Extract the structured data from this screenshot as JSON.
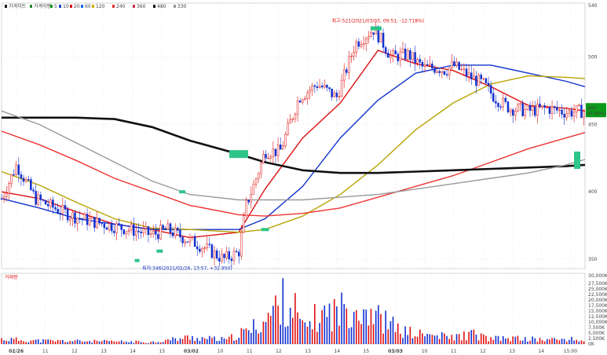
{
  "chart_data": {
    "type": "candlestick",
    "panels": [
      {
        "name": "price",
        "legend": [
          {
            "label": "가격차트",
            "color": "#1a1a1a"
          },
          {
            "label": "가격이평",
            "color": "#2a8a2a"
          },
          {
            "label": "5",
            "color": "#1a9a1a"
          },
          {
            "label": "10",
            "color": "#2244cc"
          },
          {
            "label": "20",
            "color": "#dd1111"
          },
          {
            "label": "60",
            "color": "#1166ee"
          },
          {
            "label": "120",
            "color": "#c8b400"
          },
          {
            "label": "240",
            "color": "#ee3333"
          },
          {
            "label": "360",
            "color": "#cc3355"
          },
          {
            "label": "480",
            "color": "#111111"
          },
          {
            "label": "330",
            "color": "#999999"
          }
        ],
        "y_ticks": [
          350,
          400,
          450,
          500
        ],
        "ylim": [
          343,
          540
        ],
        "top_label": "540",
        "current_price": "460",
        "current_change": "(0.00%)",
        "annotation_high": "최고:521(2021/03/03, 09:51, -12.718%)",
        "annotation_low": "최저:346(2021/02/26, 13:57, +32.950)"
      },
      {
        "name": "volume",
        "title": "거래량",
        "y_ticks": [
          "27,500K",
          "25,000K",
          "22,500K",
          "20,000K",
          "17,500K",
          "15,000K",
          "12,500K",
          "10,000K",
          "7,500K",
          "5,000K",
          "2,500K",
          "0K"
        ],
        "top_label": "30,000K"
      }
    ],
    "x_ticks": [
      "02/26",
      "11",
      "12",
      "13",
      "14",
      "15",
      "03/02",
      "10",
      "11",
      "12",
      "13",
      "14",
      "15",
      "03/03",
      "10",
      "11",
      "12",
      "13",
      "14",
      "15:00"
    ],
    "x_ticks_bold": [
      "02/26",
      "03/02",
      "03/03"
    ],
    "price_series_anchors": {
      "x": [
        0,
        8,
        18,
        28,
        38,
        48,
        58,
        68,
        75,
        80,
        88,
        98,
        106,
        118,
        126,
        130,
        134,
        140,
        148,
        158,
        168,
        178,
        188,
        198,
        207,
        216,
        224,
        232,
        236,
        240,
        244,
        248,
        256,
        262,
        270,
        280,
        290,
        300,
        310
      ],
      "y": [
        395,
        420,
        395,
        388,
        382,
        378,
        375,
        372,
        370,
        368,
        372,
        365,
        360,
        350,
        355,
        390,
        405,
        430,
        430,
        470,
        480,
        470,
        510,
        521,
        500,
        502,
        492,
        492,
        490,
        494,
        490,
        486,
        480,
        470,
        462,
        460,
        462,
        459,
        460
      ]
    },
    "ma_series": [
      {
        "name": "20",
        "color": "#dd1111",
        "x": [
          0,
          20,
          40,
          60,
          80,
          100,
          126,
          140,
          160,
          180,
          200,
          220,
          240,
          260,
          280,
          300,
          310
        ],
        "y": [
          400,
          395,
          385,
          376,
          372,
          366,
          370,
          402,
          440,
          466,
          505,
          495,
          490,
          478,
          464,
          462,
          460
        ]
      },
      {
        "name": "60",
        "color": "#1133cc",
        "x": [
          0,
          20,
          40,
          60,
          80,
          100,
          126,
          140,
          160,
          180,
          200,
          220,
          240,
          260,
          280,
          300,
          310
        ],
        "y": [
          395,
          388,
          380,
          376,
          372,
          372,
          372,
          380,
          404,
          440,
          468,
          488,
          494,
          494,
          488,
          482,
          478
        ]
      },
      {
        "name": "120",
        "color": "#b8a300",
        "x": [
          0,
          20,
          40,
          60,
          80,
          100,
          126,
          140,
          160,
          180,
          200,
          220,
          240,
          260,
          280,
          300,
          310
        ],
        "y": [
          415,
          405,
          392,
          380,
          373,
          372,
          370,
          372,
          382,
          398,
          420,
          446,
          466,
          480,
          486,
          485,
          484
        ]
      },
      {
        "name": "240",
        "color": "#ee3333",
        "x": [
          0,
          20,
          40,
          60,
          80,
          100,
          126,
          140,
          160,
          180,
          200,
          220,
          240,
          260,
          280,
          300,
          310
        ],
        "y": [
          445,
          435,
          423,
          410,
          400,
          390,
          383,
          382,
          384,
          388,
          396,
          404,
          412,
          422,
          432,
          440,
          444
        ]
      },
      {
        "name": "480",
        "color": "#111111",
        "x": [
          0,
          40,
          60,
          80,
          100,
          126,
          140,
          160,
          180,
          200,
          220,
          240,
          260,
          280,
          300,
          310
        ],
        "y": [
          455,
          455,
          454,
          448,
          438,
          428,
          422,
          416,
          414,
          414,
          415,
          416,
          417,
          418,
          419,
          420
        ]
      },
      {
        "name": "330",
        "color": "#999999",
        "x": [
          0,
          20,
          40,
          60,
          80,
          100,
          126,
          140,
          160,
          180,
          200,
          220,
          240,
          260,
          280,
          300,
          310
        ],
        "y": [
          460,
          450,
          436,
          422,
          408,
          398,
          394,
          394,
          394,
          396,
          398,
          402,
          406,
          410,
          414,
          420,
          424
        ]
      }
    ],
    "volume_series": {
      "x": [
        0,
        20,
        40,
        60,
        80,
        100,
        120,
        126,
        132,
        136,
        140,
        146,
        150,
        156,
        160,
        166,
        172,
        180,
        186,
        190,
        196,
        200,
        206,
        212,
        220,
        230,
        240,
        250,
        260,
        270,
        280,
        290,
        300,
        310
      ],
      "values": [
        3000,
        2000,
        1800,
        1500,
        1200,
        4000,
        2500,
        6000,
        8000,
        12000,
        14000,
        22000,
        26000,
        21000,
        9000,
        15000,
        18000,
        20000,
        24000,
        22000,
        21000,
        16000,
        12000,
        8000,
        6000,
        5000,
        4000,
        6000,
        3000,
        3500,
        3000,
        2500,
        3000,
        2000
      ]
    }
  }
}
